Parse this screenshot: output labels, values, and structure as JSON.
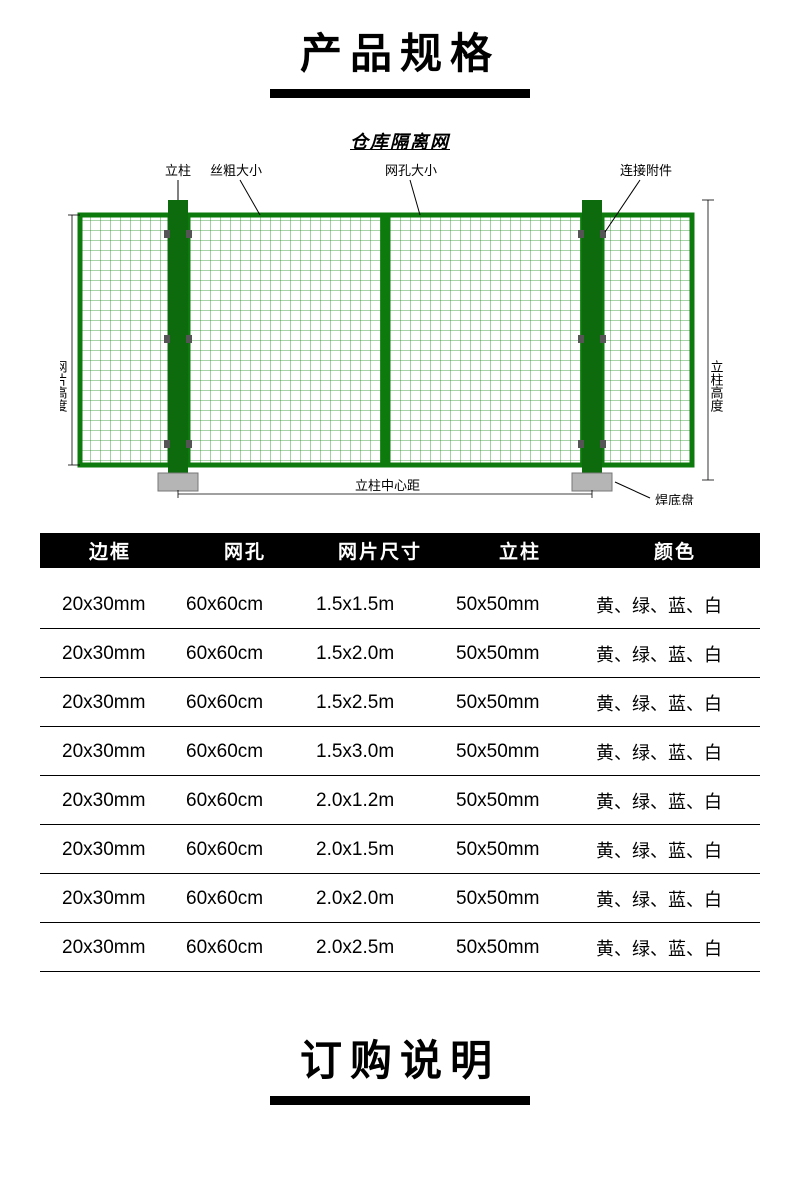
{
  "titles": {
    "spec": "产品规格",
    "order": "订购说明"
  },
  "diagram": {
    "title": "仓库隔离网",
    "labels": {
      "post": "立柱",
      "wire_thickness": "丝粗大小",
      "mesh_size": "网孔大小",
      "connector": "连接附件",
      "panel_height": "网片高度",
      "post_height": "立柱高度",
      "post_center_dist": "立柱中心距",
      "weld_base": "焊底盘"
    },
    "colors": {
      "mesh": "#1a8a1a",
      "frame": "#0c7a0c",
      "post": "#0d6b0d",
      "base": "#b5b5b5",
      "label_line": "#000000"
    }
  },
  "table": {
    "headers": [
      "边框",
      "网孔",
      "网片尺寸",
      "立柱",
      "颜色"
    ],
    "rows": [
      [
        "20x30mm",
        "60x60cm",
        "1.5x1.5m",
        "50x50mm",
        "黄、绿、蓝、白"
      ],
      [
        "20x30mm",
        "60x60cm",
        "1.5x2.0m",
        "50x50mm",
        "黄、绿、蓝、白"
      ],
      [
        "20x30mm",
        "60x60cm",
        "1.5x2.5m",
        "50x50mm",
        "黄、绿、蓝、白"
      ],
      [
        "20x30mm",
        "60x60cm",
        "1.5x3.0m",
        "50x50mm",
        "黄、绿、蓝、白"
      ],
      [
        "20x30mm",
        "60x60cm",
        "2.0x1.2m",
        "50x50mm",
        "黄、绿、蓝、白"
      ],
      [
        "20x30mm",
        "60x60cm",
        "2.0x1.5m",
        "50x50mm",
        "黄、绿、蓝、白"
      ],
      [
        "20x30mm",
        "60x60cm",
        "2.0x2.0m",
        "50x50mm",
        "黄、绿、蓝、白"
      ],
      [
        "20x30mm",
        "60x60cm",
        "2.0x2.5m",
        "50x50mm",
        "黄、绿、蓝、白"
      ]
    ]
  }
}
